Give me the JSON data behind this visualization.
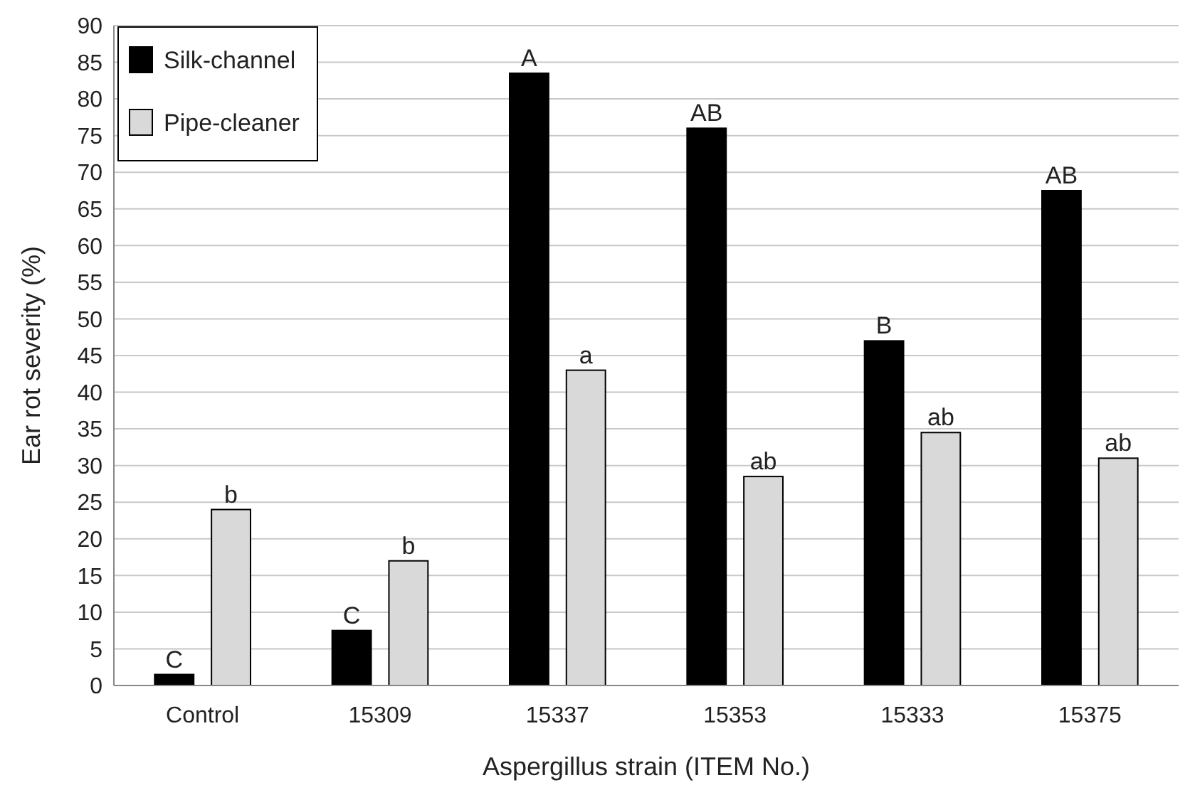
{
  "chart_data": {
    "type": "bar",
    "xlabel": "Aspergillus strain (ITEM No.)",
    "ylabel": "Ear rot severity (%)",
    "categories": [
      "Control",
      "15309",
      "15337",
      "15353",
      "15333",
      "15375"
    ],
    "series": [
      {
        "name": "Silk-channel",
        "color": "#000000",
        "values": [
          1.5,
          7.5,
          83.5,
          76,
          47,
          67.5
        ],
        "value_labels": [
          "C",
          "C",
          "A",
          "AB",
          "B",
          "AB"
        ]
      },
      {
        "name": "Pipe-cleaner",
        "color": "#d9d9d9",
        "values": [
          24,
          17,
          43,
          28.5,
          34.5,
          31
        ],
        "value_labels": [
          "b",
          "b",
          "a",
          "ab",
          "ab",
          "ab"
        ]
      }
    ],
    "ylim": [
      0,
      90
    ],
    "yticks": [
      0,
      5,
      10,
      15,
      20,
      25,
      30,
      35,
      40,
      45,
      50,
      55,
      60,
      65,
      70,
      75,
      80,
      85,
      90
    ],
    "grid": "y",
    "legend": "top left"
  }
}
